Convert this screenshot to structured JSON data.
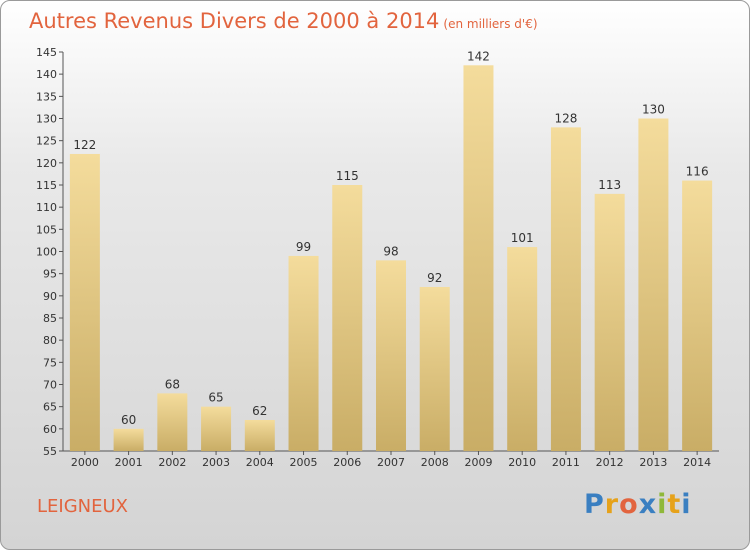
{
  "header": {
    "title": "Autres Revenus Divers de 2000 à 2014",
    "unit": "(en milliers d'€)"
  },
  "footer": {
    "commune": "LEIGNEUX",
    "logo": {
      "letters": [
        "P",
        "r",
        "o",
        "x",
        "i",
        "t",
        "i"
      ],
      "colors": [
        "#3a7fc1",
        "#e6a21a",
        "#e2643e",
        "#3a7fc1",
        "#8fb83a",
        "#e6a21a",
        "#3a7fc1"
      ]
    }
  },
  "chart_data": {
    "type": "bar",
    "categories": [
      "2000",
      "2001",
      "2002",
      "2003",
      "2004",
      "2005",
      "2006",
      "2007",
      "2008",
      "2009",
      "2010",
      "2011",
      "2012",
      "2013",
      "2014"
    ],
    "values": [
      122,
      60,
      68,
      65,
      62,
      99,
      115,
      98,
      92,
      142,
      101,
      128,
      113,
      130,
      116
    ],
    "title": "Autres Revenus Divers de 2000 à 2014",
    "ylim": [
      55,
      145
    ],
    "yticks": [
      55,
      60,
      65,
      70,
      75,
      80,
      85,
      90,
      95,
      100,
      105,
      110,
      115,
      120,
      125,
      130,
      135,
      140,
      145
    ],
    "grid": false,
    "bar_color_top": "#f4dc9c",
    "bar_color_bottom": "#c9ad66"
  }
}
